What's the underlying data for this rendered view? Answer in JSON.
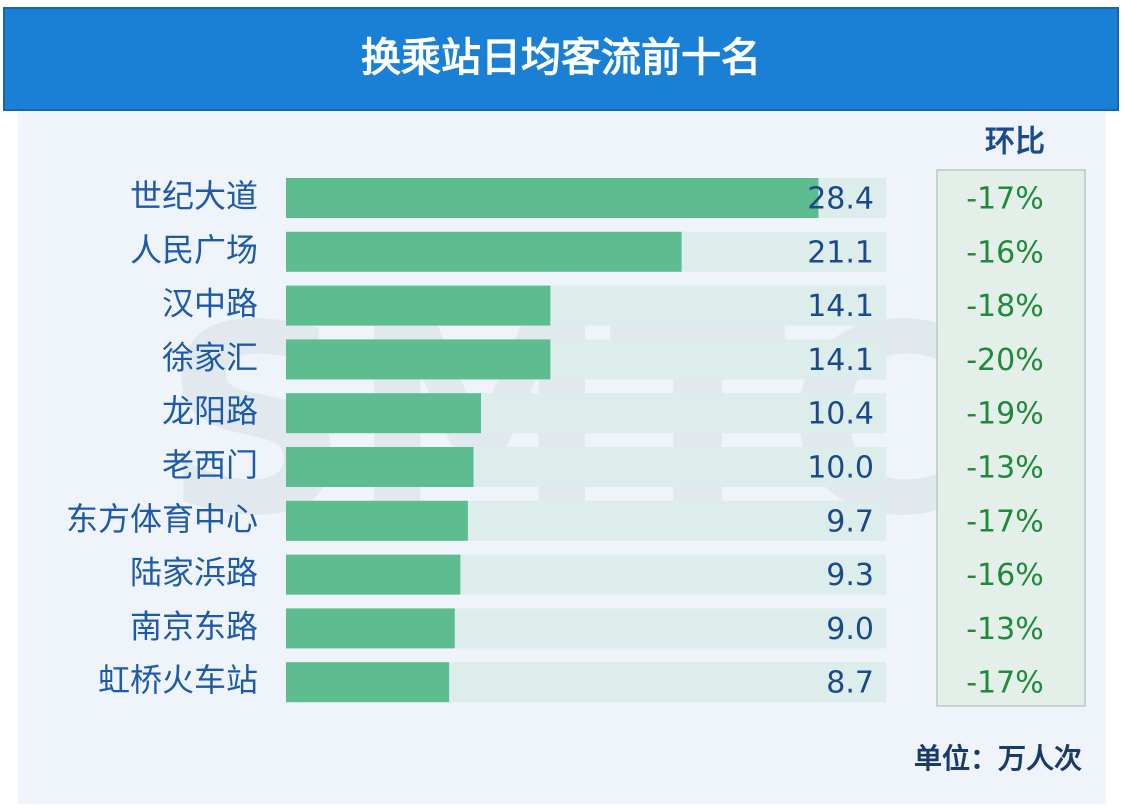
{
  "chart_data": {
    "type": "bar",
    "orientation": "horizontal",
    "title": "换乘站日均客流前十名",
    "watermark": "SMTC",
    "categories": [
      "世纪大道",
      "人民广场",
      "汉中路",
      "徐家汇",
      "龙阳路",
      "老西门",
      "东方体育中心",
      "陆家浜路",
      "南京东路",
      "虹桥火车站"
    ],
    "values": [
      28.4,
      21.1,
      14.1,
      14.1,
      10.4,
      10.0,
      9.7,
      9.3,
      9.0,
      8.7
    ],
    "value_labels": [
      "28.4",
      "21.1",
      "14.1",
      "14.1",
      "10.4",
      "10.0",
      "9.7",
      "9.3",
      "9.0",
      "8.7"
    ],
    "color": "#5dbd91",
    "xlim": [
      0,
      32
    ],
    "change": {
      "name": "环比",
      "values": [
        -17,
        -16,
        -18,
        -20,
        -19,
        -13,
        -17,
        -16,
        -13,
        -17
      ],
      "value_labels": [
        "-17%",
        "-16%",
        "-18%",
        "-20%",
        "-19%",
        "-13%",
        "-17%",
        "-16%",
        "-13%",
        "-17%"
      ]
    },
    "unit": "单位：万人次"
  }
}
